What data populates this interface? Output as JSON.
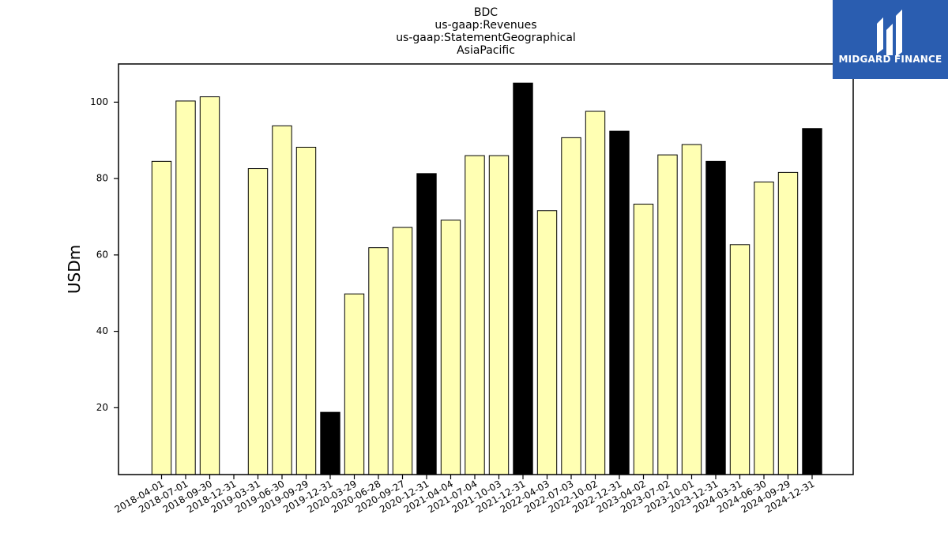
{
  "chart_data": {
    "type": "bar",
    "title": [
      "BDC",
      "us-gaap:Revenues",
      "us-gaap:StatementGeographical",
      "AsiaPacific"
    ],
    "xlabel": "",
    "ylabel": "USDm",
    "ylim": [
      2.5,
      110
    ],
    "yticks": [
      20,
      40,
      60,
      80,
      100
    ],
    "grid": false,
    "categories": [
      "2018-04-01",
      "2018-07-01",
      "2018-09-30",
      "2018-12-31",
      "2019-03-31",
      "2019-06-30",
      "2019-09-29",
      "2019-12-31",
      "2020-03-29",
      "2020-06-28",
      "2020-09-27",
      "2020-12-31",
      "2021-04-04",
      "2021-07-04",
      "2021-10-03",
      "2021-12-31",
      "2022-04-03",
      "2022-07-03",
      "2022-10-02",
      "2022-12-31",
      "2023-04-02",
      "2023-07-02",
      "2023-10-01",
      "2023-12-31",
      "2024-03-31",
      "2024-06-30",
      "2024-09-29",
      "2024-12-31"
    ],
    "values": [
      84.5,
      100.3,
      101.4,
      null,
      82.6,
      93.8,
      88.2,
      18.8,
      49.8,
      61.9,
      67.2,
      81.3,
      69.1,
      86.0,
      86.0,
      105.0,
      71.6,
      90.7,
      97.6,
      92.4,
      73.3,
      86.2,
      88.9,
      84.5,
      62.7,
      79.1,
      81.6,
      93.1
    ],
    "year_end": [
      false,
      false,
      false,
      true,
      false,
      false,
      false,
      true,
      false,
      false,
      false,
      true,
      false,
      false,
      false,
      true,
      false,
      false,
      false,
      true,
      false,
      false,
      false,
      true,
      false,
      false,
      false,
      true
    ]
  },
  "colors": {
    "quarter_fill": "#ffffb3",
    "year_end_fill": "#000000",
    "bar_edge": "#000000",
    "logo_bg": "#2a5db0"
  },
  "logo": {
    "text": "MIDGARD FINANCE",
    "icon": "midgard-logo-icon"
  }
}
